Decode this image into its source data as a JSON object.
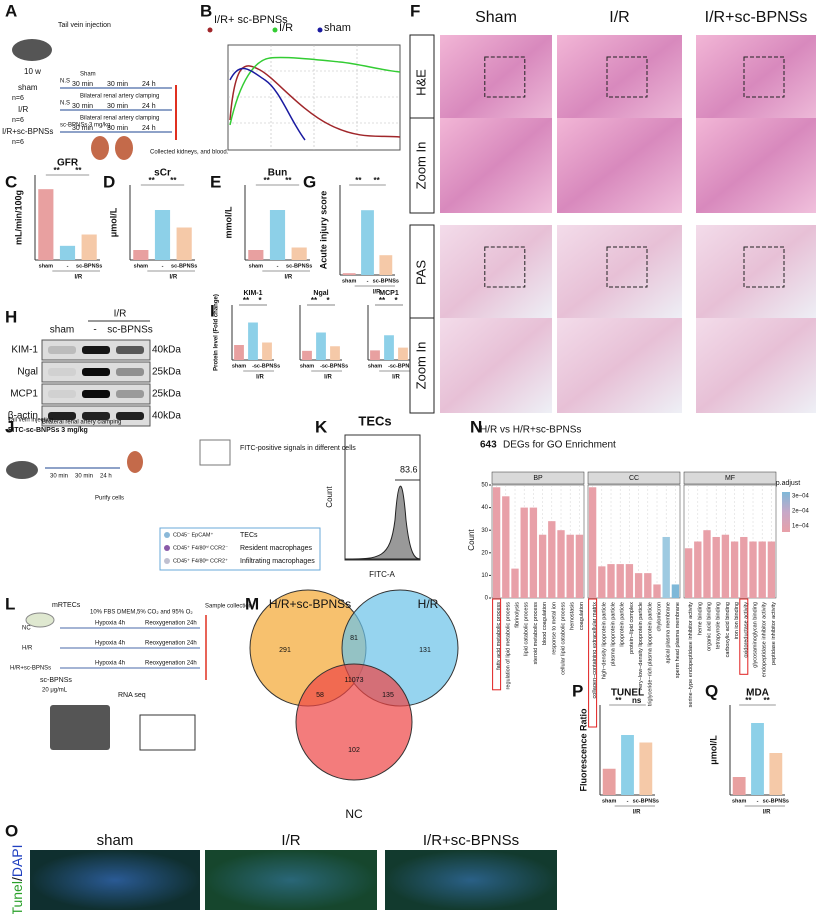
{
  "a": {
    "letter": "A",
    "age": "10 w",
    "injection": "Tail vein injection",
    "times": [
      "30 min",
      "30 min",
      "24 h"
    ],
    "end": "Collected kidneys, and blood.",
    "groups": [
      {
        "name": "sham",
        "n": "n=6",
        "treat": "N.S",
        "step": "Sham"
      },
      {
        "name": "I/R",
        "n": "n=6",
        "treat": "N.S",
        "step": "Bilateral renal artery clamping"
      },
      {
        "name": "I/R+sc-BPNSs",
        "n": "n=6",
        "treat": "sc-BPNSs 3 mg/kg",
        "step": "Bilateral renal artery clamping"
      }
    ]
  },
  "b": {
    "letter": "B",
    "series": [
      {
        "name": "I/R+ sc-BPNSs",
        "color": "#a0262a"
      },
      {
        "name": "I/R",
        "color": "#33cc33"
      },
      {
        "name": "sham",
        "color": "#1a1aa0"
      }
    ]
  },
  "bars": [
    {
      "letter": "C",
      "title": "GFR",
      "ylabel": "mL/min/100g",
      "categories": [
        "sham",
        "-",
        "sc-BPNSs"
      ],
      "group": "I/R",
      "values": [
        1.25,
        0.25,
        0.45
      ],
      "ylim": [
        0,
        1.5
      ],
      "sig": [
        "**",
        "**"
      ]
    },
    {
      "letter": "D",
      "title": "sCr",
      "ylabel": "μmol/L",
      "categories": [
        "sham",
        "-",
        "sc-BPNSs"
      ],
      "group": "I/R",
      "values": [
        20,
        100,
        65
      ],
      "ylim": [
        0,
        150
      ],
      "sig": [
        "**",
        "**"
      ]
    },
    {
      "letter": "E",
      "title": "Bun",
      "ylabel": "mmol/L",
      "categories": [
        "sham",
        "-",
        "sc-BPNSs"
      ],
      "group": "I/R",
      "values": [
        4,
        20,
        5
      ],
      "ylim": [
        0,
        30
      ],
      "sig": [
        "**",
        "**"
      ]
    },
    {
      "letter": "G",
      "title": "",
      "ylabel": "Acute injury score",
      "categories": [
        "sham",
        "-",
        "sc-BPNSs"
      ],
      "group": "I/R",
      "values": [
        0.1,
        3.6,
        1.1
      ],
      "ylim": [
        0,
        5
      ],
      "sig": [
        "**",
        "**"
      ]
    },
    {
      "letter": "I",
      "title": "KIM-1",
      "ylabel": "Protein level (Fold change)",
      "categories": [
        "sham",
        "-",
        "sc-BPNSs"
      ],
      "group": "I/R",
      "values": [
        0.6,
        1.5,
        0.7
      ],
      "ylim": [
        0,
        2.2
      ],
      "sig": [
        "**",
        "*"
      ]
    },
    {
      "letter": "",
      "title": "Ngal",
      "ylabel": "",
      "categories": [
        "sham",
        "-",
        "sc-BPNSs"
      ],
      "group": "I/R",
      "values": [
        1,
        3,
        1.5
      ],
      "ylim": [
        0,
        6
      ],
      "sig": [
        "**",
        "*"
      ]
    },
    {
      "letter": "",
      "title": "MCP1",
      "ylabel": "",
      "categories": [
        "sham",
        "-",
        "sc-BPNSs"
      ],
      "group": "I/R",
      "values": [
        0.7,
        1.8,
        0.9
      ],
      "ylim": [
        0,
        4
      ],
      "sig": [
        "**",
        "*"
      ]
    },
    {
      "letter": "P",
      "title": "TUNEL",
      "ylabel": "Fluorescence Ratio",
      "categories": [
        "sham",
        "-",
        "sc-BPNSs"
      ],
      "group": "I/R",
      "values": [
        0.35,
        0.8,
        0.7
      ],
      "ylim": [
        0,
        1.2
      ],
      "sig": [
        "**",
        "ns"
      ]
    },
    {
      "letter": "Q",
      "title": "MDA",
      "ylabel": "μmol/L",
      "categories": [
        "sham",
        "-",
        "sc-BPNSs"
      ],
      "group": "I/R",
      "values": [
        0.6,
        2.4,
        1.4
      ],
      "ylim": [
        0,
        3
      ],
      "sig": [
        "**",
        "**"
      ]
    }
  ],
  "bar_colors": [
    "#e8a0a0",
    "#8dd0e8",
    "#f5c9a8"
  ],
  "f": {
    "letter": "F",
    "columns": [
      "Sham",
      "I/R",
      "I/R+sc-BPNSs"
    ],
    "rows": [
      "H&E",
      "Zoom In",
      "PAS",
      "Zoom In"
    ]
  },
  "h": {
    "letter": "H",
    "group": "I/R",
    "lanes": [
      "sham",
      "-",
      "sc-BPNSs"
    ],
    "rows": [
      {
        "name": "KIM-1",
        "size": "40kDa"
      },
      {
        "name": "Ngal",
        "size": "25kDa"
      },
      {
        "name": "MCP1",
        "size": "25kDa"
      },
      {
        "name": "β-actin",
        "size": "40kDa"
      }
    ]
  },
  "j": {
    "letter": "J",
    "injection": "Tail vein injection",
    "agent": "FITC-sc-BNPSs 3 mg/kg",
    "clamp": "Bilateral renal artery clamping",
    "times": [
      "30 min",
      "30 min",
      "24 h"
    ],
    "purify": "Purify cells",
    "signal": "FITC-positive signals in different cells",
    "cells": [
      {
        "marker": "CD45⁻ EpCAM⁺",
        "name": "TECs"
      },
      {
        "marker": "CD45⁺ F4/80ʰⁱ CCR2⁻",
        "name": "Resident macrophages"
      },
      {
        "marker": "CD45⁺ F4/80ˡᵒ CCR2⁺",
        "name": "Infiltrating macrophages"
      }
    ]
  },
  "k": {
    "letter": "K",
    "title": "TECs",
    "gate": 83.6,
    "xlabel": "FITC-A",
    "ylabel": "Count"
  },
  "l": {
    "letter": "L",
    "cells": "mRTECs",
    "medium": "10% FBS DMEM,5% CO₂ and 95% O₂",
    "collect": "Sample collection",
    "groups": [
      "NC",
      "H/R",
      "H/R+sc-BPNSs"
    ],
    "hypoxia": "Hypoxia 4h",
    "reox": "Reoxygenation 24h",
    "agent": "sc-BPNSs",
    "dose": "20 μg/mL",
    "seq": "RNA seq"
  },
  "m": {
    "letter": "M",
    "sets": [
      "H/R+sc-BPNSs",
      "H/R",
      "NC"
    ],
    "counts": {
      "a": 291,
      "ab": 81,
      "b": 131,
      "abc": 11073,
      "ac": 58,
      "bc": 135,
      "c": 102
    }
  },
  "n": {
    "letter": "N",
    "title": "H/R vs H/R+sc-BPNSs",
    "degs": 643,
    "degs_text": "DEGs  for GO Enrichment",
    "ylabel": "Count",
    "ylim": [
      0,
      50
    ],
    "yticks": [
      0,
      10,
      20,
      30,
      40,
      50
    ],
    "legend_title": "p.adjust",
    "legend_labels": [
      "3e−04",
      "2e−04",
      "1e−04"
    ],
    "facets": [
      {
        "name": "BP",
        "highlight": 0,
        "terms": [
          "fatty acid metabolic process",
          "regulation of lipid metabolic process",
          "fibrinolysis",
          "lipid catabolic process",
          "steroid metabolic process",
          "blood coagulation",
          "response to metal ion",
          "cellular lipid catabolic process",
          "hemostasis",
          "coagulation"
        ],
        "values": [
          49,
          45,
          13,
          40,
          40,
          28,
          34,
          30,
          28,
          28
        ],
        "colors": [
          "#e8a0a8",
          "#e8a0a8",
          "#e8a0a8",
          "#e8a0a8",
          "#e8a0a8",
          "#e8a0a8",
          "#e8a0a8",
          "#e8a0a8",
          "#e8a0a8",
          "#e8a0a8"
        ]
      },
      {
        "name": "CC",
        "highlight": 0,
        "terms": [
          "collagen−containing extracellular matrix",
          "high−density lipoprotein particle",
          "plasma lipoprotein particle",
          "lipoprotein particle",
          "protein−lipid complex",
          "very−low−density lipoprotein particle",
          "triglyceride−rich plasma lipoprotein particle",
          "chylomicron",
          "apical plasma membrane",
          "sperm head plasma membrane"
        ],
        "values": [
          49,
          14,
          15,
          15,
          15,
          11,
          11,
          6,
          27,
          6
        ],
        "colors": [
          "#e8a0a8",
          "#e8a0a8",
          "#e8a0a8",
          "#e8a0a8",
          "#e8a0a8",
          "#e8a0a8",
          "#e8a0a8",
          "#e8a0a8",
          "#9ecae1",
          "#7fb8d8"
        ]
      },
      {
        "name": "MF",
        "highlight": 6,
        "terms": [
          "serine−type endopeptidase inhibitor activity",
          "heme binding",
          "organic acid binding",
          "tetrapyrrole binding",
          "carboxylic acid binding",
          "iron ion binding",
          "oxidoreductase activity",
          "glycosaminoglycan binding",
          "endopeptidase inhibitor activity",
          "peptidase inhibitor activity"
        ],
        "values": [
          22,
          25,
          30,
          27,
          28,
          25,
          27,
          25,
          25,
          25
        ],
        "colors": [
          "#e8a0a8",
          "#e8a0a8",
          "#e8a0a8",
          "#e8a0a8",
          "#e8a0a8",
          "#e8a0a8",
          "#e8a0a8",
          "#e8a0a8",
          "#e8a0a8",
          "#e8a0a8"
        ]
      }
    ]
  },
  "o": {
    "letter": "O",
    "columns": [
      "sham",
      "I/R",
      "I/R+sc-BPNSs"
    ],
    "stain": "Tunel",
    "sep": "/",
    "counter": "DAPI"
  }
}
